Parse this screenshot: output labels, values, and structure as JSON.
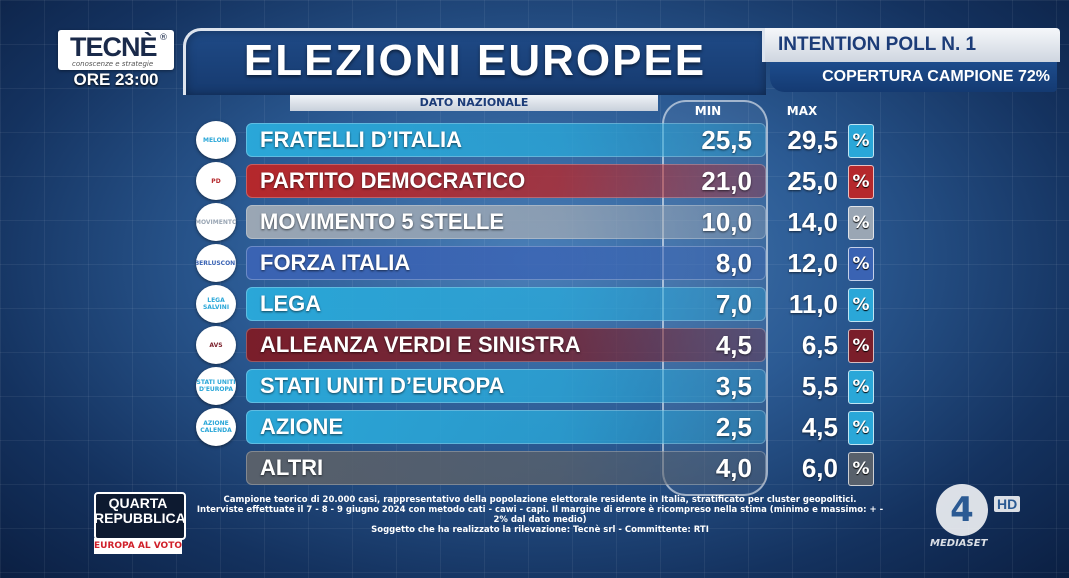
{
  "header": {
    "logo": "TECNÈ",
    "logo_sub": "conoscenze e strategie",
    "time": "ORE 23:00",
    "title": "ELEZIONI EUROPEE",
    "poll": "INTENTION POLL N. 1",
    "coverage": "COPERTURA CAMPIONE 72%",
    "subtitle": "DATO NAZIONALE",
    "min_label": "MIN",
    "max_label": "MAX"
  },
  "colors": {
    "cyan": "#2aa7d8",
    "red": "#b5282c",
    "gray": "#9aa6b4",
    "blue": "#3a63b3",
    "darkred": "#7a1e2a",
    "darkgray": "#58606b"
  },
  "parties": [
    {
      "name": "FRATELLI D’ITALIA",
      "min": "25,5",
      "max": "29,5",
      "color": "#2aa7d8",
      "emblem": "MELONI"
    },
    {
      "name": "PARTITO DEMOCRATICO",
      "min": "21,0",
      "max": "25,0",
      "color": "#b5282c",
      "emblem": "PD"
    },
    {
      "name": "MOVIMENTO 5 STELLE",
      "min": "10,0",
      "max": "14,0",
      "color": "#9aa6b4",
      "emblem": "MOVIMENTO"
    },
    {
      "name": "FORZA ITALIA",
      "min": "8,0",
      "max": "12,0",
      "color": "#3a63b3",
      "emblem": "BERLUSCONI"
    },
    {
      "name": "LEGA",
      "min": "7,0",
      "max": "11,0",
      "color": "#2aa7d8",
      "emblem": "LEGA SALVINI"
    },
    {
      "name": "ALLEANZA VERDI E SINISTRA",
      "min": "4,5",
      "max": "6,5",
      "color": "#7a1e2a",
      "emblem": "AVS"
    },
    {
      "name": "STATI UNITI D’EUROPA",
      "min": "3,5",
      "max": "5,5",
      "color": "#2aa7d8",
      "emblem": "STATI UNITI D'EUROPA"
    },
    {
      "name": "AZIONE",
      "min": "2,5",
      "max": "4,5",
      "color": "#2aa7d8",
      "emblem": "AZIONE CALENDA"
    },
    {
      "name": "ALTRI",
      "min": "4,0",
      "max": "6,0",
      "color": "#58606b",
      "emblem": ""
    }
  ],
  "pct_symbol": "%",
  "footer": {
    "line1": "Campione teorico di 20.000 casi, rappresentativo della popolazione elettorale residente in Italia, stratificato per cluster geopolitici.",
    "line2": "Interviste effettuate il 7 - 8 - 9 giugno 2024 con metodo cati - cawi - capi. Il margine di errore è ricompreso nella stima (minimo e massimo: + - 2% dal dato medio)",
    "line3": "Soggetto che ha realizzato la rilevazione: Tecnè srl - Committente: RTI"
  },
  "show": {
    "name": "QUARTA REPUBBLICA",
    "tag": "EUROPA AL VOTO"
  },
  "channel": {
    "number": "4",
    "hd": "HD",
    "brand": "MEDIASET"
  }
}
